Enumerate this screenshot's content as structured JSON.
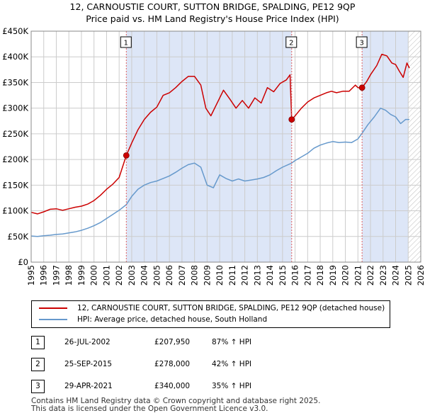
{
  "titles": {
    "line1": "12, CARNOUSTIE COURT, SUTTON BRIDGE, SPALDING, PE12 9QP",
    "line2": "Price paid vs. HM Land Registry's House Price Index (HPI)"
  },
  "colors": {
    "property": "#cc0000",
    "hpi": "#6699cc",
    "shade": "#dde6f7",
    "marker_line": "#e06060",
    "grid": "#cccccc"
  },
  "chart_data": {
    "type": "line",
    "ylabel": "",
    "xlabel": "",
    "ylim": [
      0,
      450000
    ],
    "xlim": [
      1995,
      2026
    ],
    "y_ticks": [
      {
        "value": 0,
        "label": "£0"
      },
      {
        "value": 50000,
        "label": "£50K"
      },
      {
        "value": 100000,
        "label": "£100K"
      },
      {
        "value": 150000,
        "label": "£150K"
      },
      {
        "value": 200000,
        "label": "£200K"
      },
      {
        "value": 250000,
        "label": "£250K"
      },
      {
        "value": 300000,
        "label": "£300K"
      },
      {
        "value": 350000,
        "label": "£350K"
      },
      {
        "value": 400000,
        "label": "£400K"
      },
      {
        "value": 450000,
        "label": "£450K"
      }
    ],
    "x_ticks": [
      "1995",
      "1996",
      "1997",
      "1998",
      "1999",
      "2000",
      "2001",
      "2002",
      "2003",
      "2004",
      "2005",
      "2006",
      "2007",
      "2008",
      "2009",
      "2010",
      "2011",
      "2012",
      "2013",
      "2014",
      "2015",
      "2016",
      "2017",
      "2018",
      "2019",
      "2020",
      "2021",
      "2022",
      "2023",
      "2024",
      "2025",
      "2026"
    ],
    "shaded_spans": [
      [
        2002.57,
        2015.73
      ],
      [
        2021.33,
        2025.0
      ]
    ],
    "future_hatch_from": 2025.0,
    "series": [
      {
        "name": "12, CARNOUSTIE COURT, SUTTON BRIDGE, SPALDING, PE12 9QP (detached house)",
        "points": [
          [
            1995.0,
            97000
          ],
          [
            1995.5,
            94000
          ],
          [
            1996.0,
            98000
          ],
          [
            1996.5,
            103000
          ],
          [
            1997.0,
            104000
          ],
          [
            1997.5,
            101000
          ],
          [
            1998.0,
            104000
          ],
          [
            1998.5,
            107000
          ],
          [
            1999.0,
            109000
          ],
          [
            1999.5,
            113000
          ],
          [
            2000.0,
            120000
          ],
          [
            2000.5,
            130000
          ],
          [
            2001.0,
            142000
          ],
          [
            2001.5,
            152000
          ],
          [
            2002.0,
            165000
          ],
          [
            2002.57,
            207950
          ],
          [
            2003.0,
            232000
          ],
          [
            2003.5,
            258000
          ],
          [
            2004.0,
            278000
          ],
          [
            2004.5,
            292000
          ],
          [
            2005.0,
            302000
          ],
          [
            2005.5,
            325000
          ],
          [
            2006.0,
            330000
          ],
          [
            2006.5,
            340000
          ],
          [
            2007.0,
            352000
          ],
          [
            2007.5,
            362000
          ],
          [
            2008.0,
            362000
          ],
          [
            2008.5,
            345000
          ],
          [
            2008.9,
            300000
          ],
          [
            2009.3,
            285000
          ],
          [
            2009.8,
            310000
          ],
          [
            2010.3,
            335000
          ],
          [
            2010.8,
            318000
          ],
          [
            2011.3,
            300000
          ],
          [
            2011.8,
            315000
          ],
          [
            2012.3,
            300000
          ],
          [
            2012.8,
            320000
          ],
          [
            2013.3,
            310000
          ],
          [
            2013.8,
            340000
          ],
          [
            2014.3,
            332000
          ],
          [
            2014.8,
            348000
          ],
          [
            2015.3,
            355000
          ],
          [
            2015.6,
            365000
          ],
          [
            2015.73,
            278000
          ],
          [
            2016.0,
            285000
          ],
          [
            2016.5,
            300000
          ],
          [
            2017.0,
            312000
          ],
          [
            2017.5,
            320000
          ],
          [
            2018.0,
            325000
          ],
          [
            2018.5,
            330000
          ],
          [
            2018.9,
            333000
          ],
          [
            2019.3,
            330000
          ],
          [
            2019.8,
            333000
          ],
          [
            2020.3,
            333000
          ],
          [
            2020.8,
            345000
          ],
          [
            2021.0,
            340000
          ],
          [
            2021.33,
            340000
          ],
          [
            2021.7,
            352000
          ],
          [
            2022.0,
            365000
          ],
          [
            2022.5,
            383000
          ],
          [
            2022.9,
            405000
          ],
          [
            2023.3,
            402000
          ],
          [
            2023.7,
            388000
          ],
          [
            2024.0,
            385000
          ],
          [
            2024.3,
            372000
          ],
          [
            2024.6,
            360000
          ],
          [
            2024.9,
            388000
          ],
          [
            2025.1,
            378000
          ]
        ]
      },
      {
        "name": "HPI: Average price, detached house, South Holland",
        "points": [
          [
            1995.0,
            51000
          ],
          [
            1995.5,
            50000
          ],
          [
            1996.0,
            51500
          ],
          [
            1996.5,
            52500
          ],
          [
            1997.0,
            54000
          ],
          [
            1997.5,
            55000
          ],
          [
            1998.0,
            57000
          ],
          [
            1998.5,
            59000
          ],
          [
            1999.0,
            62000
          ],
          [
            1999.5,
            66000
          ],
          [
            2000.0,
            71000
          ],
          [
            2000.5,
            77000
          ],
          [
            2001.0,
            85000
          ],
          [
            2001.5,
            93000
          ],
          [
            2002.0,
            101000
          ],
          [
            2002.57,
            112000
          ],
          [
            2003.0,
            128000
          ],
          [
            2003.5,
            142000
          ],
          [
            2004.0,
            150000
          ],
          [
            2004.5,
            155000
          ],
          [
            2005.0,
            158000
          ],
          [
            2005.5,
            163000
          ],
          [
            2006.0,
            168000
          ],
          [
            2006.5,
            175000
          ],
          [
            2007.0,
            183000
          ],
          [
            2007.5,
            190000
          ],
          [
            2008.0,
            193000
          ],
          [
            2008.5,
            185000
          ],
          [
            2009.0,
            150000
          ],
          [
            2009.5,
            145000
          ],
          [
            2010.0,
            170000
          ],
          [
            2010.5,
            163000
          ],
          [
            2011.0,
            158000
          ],
          [
            2011.5,
            162000
          ],
          [
            2012.0,
            158000
          ],
          [
            2012.5,
            160000
          ],
          [
            2013.0,
            162000
          ],
          [
            2013.5,
            165000
          ],
          [
            2014.0,
            170000
          ],
          [
            2014.5,
            178000
          ],
          [
            2015.0,
            185000
          ],
          [
            2015.73,
            193000
          ],
          [
            2016.0,
            198000
          ],
          [
            2016.5,
            205000
          ],
          [
            2017.0,
            212000
          ],
          [
            2017.5,
            222000
          ],
          [
            2018.0,
            228000
          ],
          [
            2018.5,
            232000
          ],
          [
            2019.0,
            235000
          ],
          [
            2019.5,
            233000
          ],
          [
            2020.0,
            234000
          ],
          [
            2020.5,
            233000
          ],
          [
            2021.0,
            240000
          ],
          [
            2021.33,
            251000
          ],
          [
            2021.8,
            268000
          ],
          [
            2022.3,
            283000
          ],
          [
            2022.8,
            300000
          ],
          [
            2023.2,
            296000
          ],
          [
            2023.6,
            288000
          ],
          [
            2024.0,
            283000
          ],
          [
            2024.4,
            270000
          ],
          [
            2024.8,
            278000
          ],
          [
            2025.1,
            278000
          ]
        ]
      }
    ],
    "sale_markers": [
      {
        "num": "1",
        "year": 2002.57,
        "price": 207950
      },
      {
        "num": "2",
        "year": 2015.73,
        "price": 278000
      },
      {
        "num": "3",
        "year": 2021.33,
        "price": 340000
      }
    ]
  },
  "legend": {
    "property_label": "12, CARNOUSTIE COURT, SUTTON BRIDGE, SPALDING, PE12 9QP (detached house)",
    "hpi_label": "HPI: Average price, detached house, South Holland"
  },
  "transactions": [
    {
      "num": "1",
      "date": "26-JUL-2002",
      "price": "£207,950",
      "hpi": "87% ↑ HPI"
    },
    {
      "num": "2",
      "date": "25-SEP-2015",
      "price": "£278,000",
      "hpi": "42% ↑ HPI"
    },
    {
      "num": "3",
      "date": "29-APR-2021",
      "price": "£340,000",
      "hpi": "35% ↑ HPI"
    }
  ],
  "footer": {
    "line1": "Contains HM Land Registry data © Crown copyright and database right 2025.",
    "line2": "This data is licensed under the Open Government Licence v3.0."
  }
}
